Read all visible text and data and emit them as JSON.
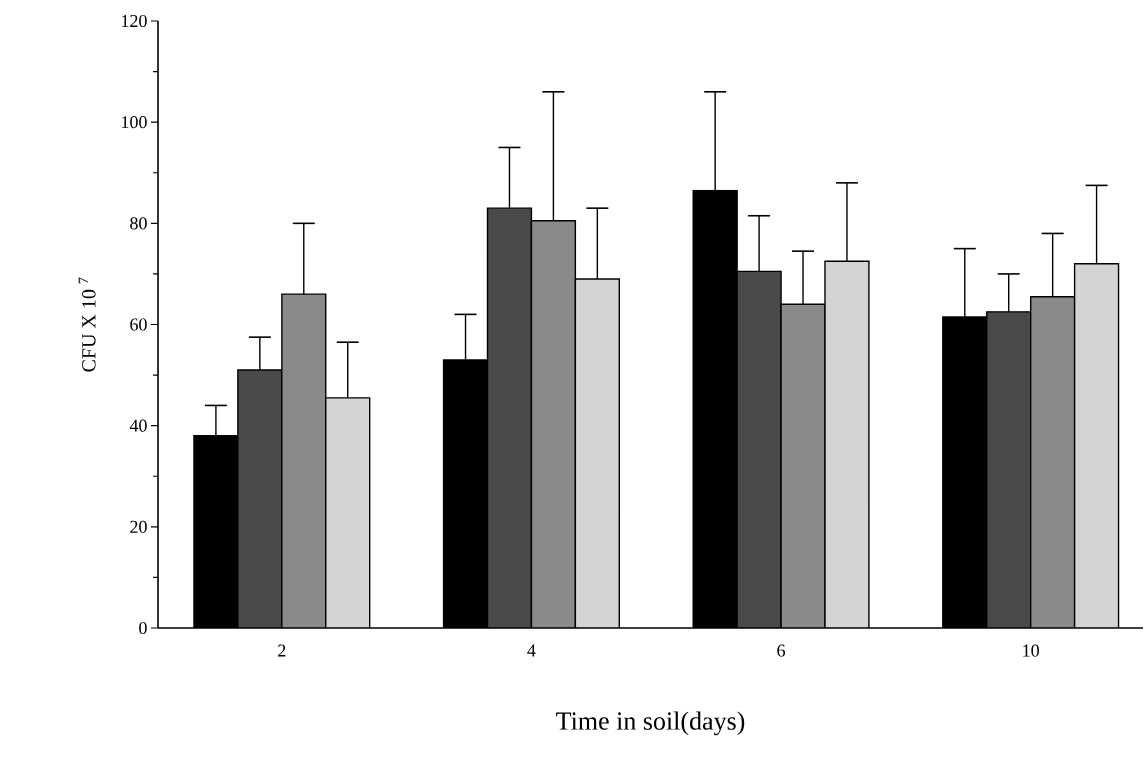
{
  "chart_data": {
    "type": "bar",
    "xlabel": "Time in soil(days)",
    "ylabel": "CFU X 10 $^{7}$",
    "categories": [
      "2",
      "4",
      "6",
      "10"
    ],
    "series": [
      {
        "color": "#000000",
        "values": [
          38,
          53,
          86.5,
          61.5
        ],
        "errors": [
          [
            38,
            44
          ],
          [
            53,
            62
          ],
          [
            86.5,
            106
          ],
          [
            61.5,
            75
          ]
        ]
      },
      {
        "color": "#4a4a4a",
        "values": [
          51,
          83,
          70.5,
          62.5
        ],
        "errors": [
          [
            51,
            57.5
          ],
          [
            83,
            95
          ],
          [
            70.5,
            81.5
          ],
          [
            62.5,
            70
          ]
        ]
      },
      {
        "color": "#8a8a8a",
        "values": [
          66,
          80.5,
          64,
          65.5
        ],
        "errors": [
          [
            66,
            80
          ],
          [
            80.5,
            106
          ],
          [
            64,
            74.5
          ],
          [
            65.5,
            78
          ]
        ]
      },
      {
        "color": "#d4d4d4",
        "values": [
          45.5,
          69,
          72.5,
          72
        ],
        "errors": [
          [
            45.5,
            56.5
          ],
          [
            69,
            83
          ],
          [
            72.5,
            88
          ],
          [
            72,
            87.5
          ]
        ]
      }
    ],
    "ylim": [
      0,
      120
    ],
    "yticks": [
      0,
      20,
      40,
      60,
      80,
      100,
      120
    ],
    "grid": false
  }
}
